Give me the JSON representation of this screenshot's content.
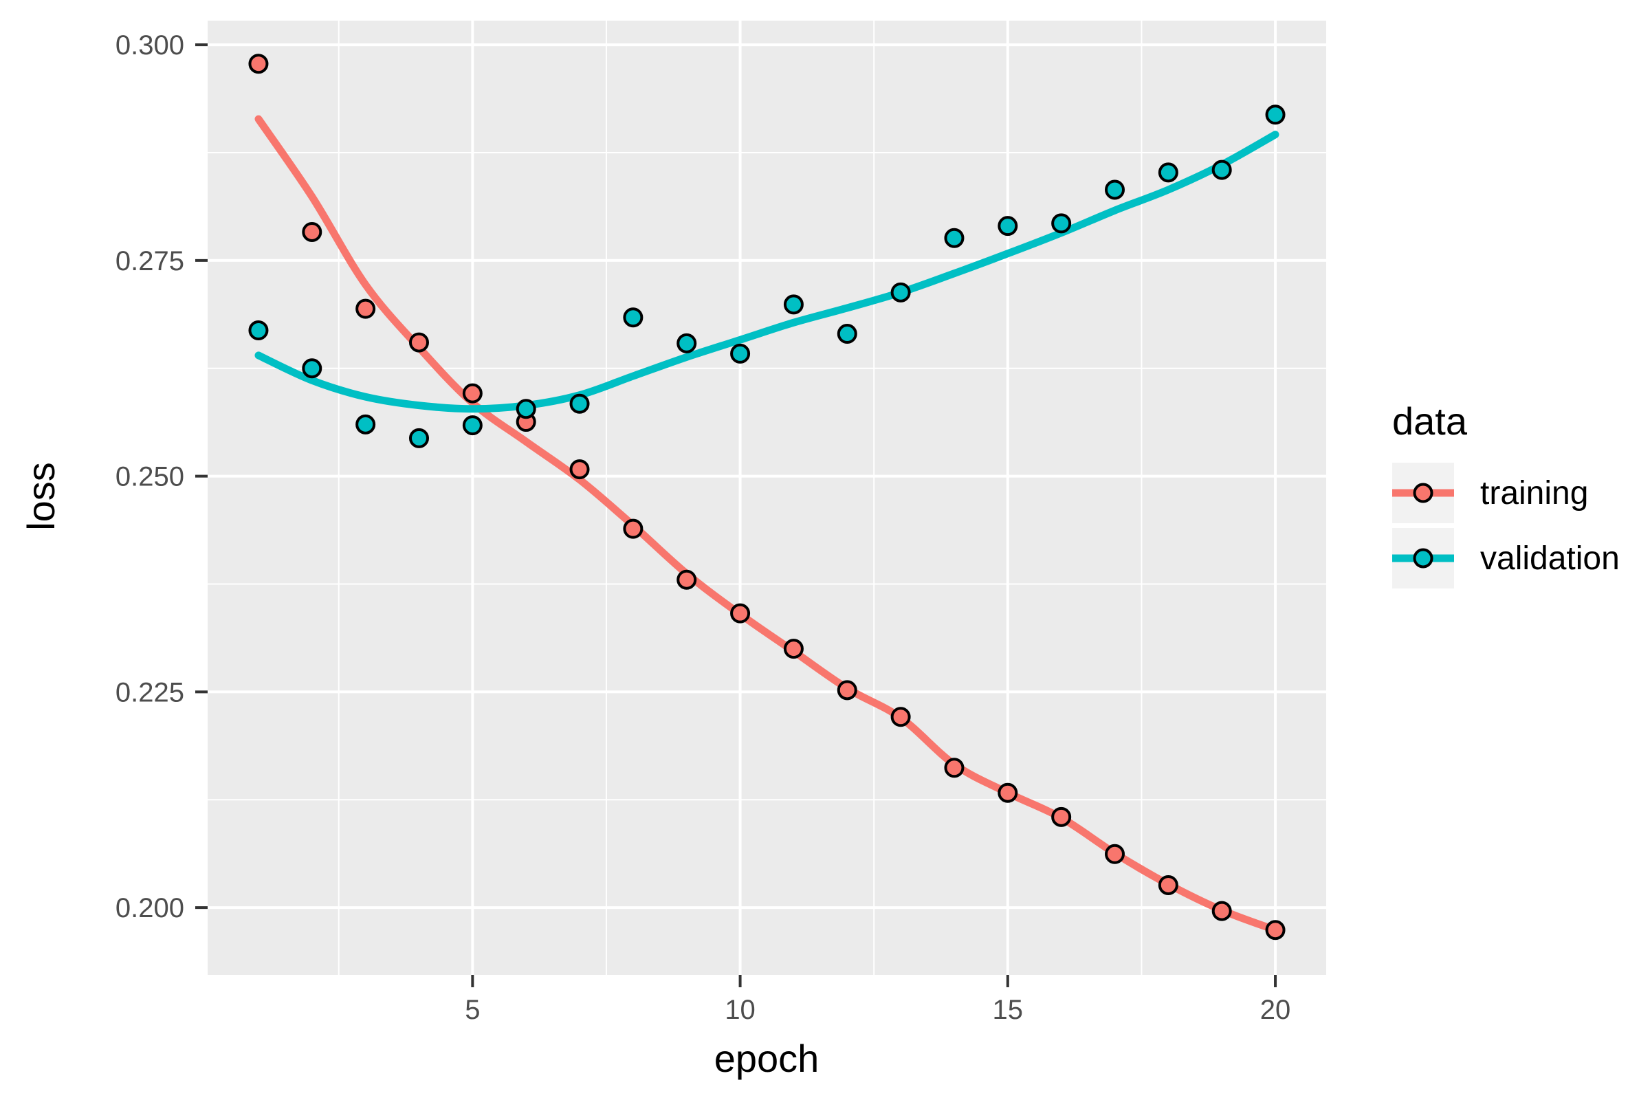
{
  "chart_data": {
    "type": "scatter",
    "title": "",
    "xlabel": "epoch",
    "ylabel": "loss",
    "legend_title": "data",
    "legend_position": "right",
    "grid": true,
    "panel_bg": "#EBEBEB",
    "grid_color": "#FFFFFF",
    "tick_mark_color": "#333333",
    "tick_label_color": "#4D4D4D",
    "xlim": [
      0.05,
      20.95
    ],
    "ylim": [
      0.1922,
      0.3028
    ],
    "x_major_ticks": [
      5,
      10,
      15,
      20
    ],
    "x_tick_labels": [
      "5",
      "10",
      "15",
      "20"
    ],
    "x_minor_ticks": [
      2.5,
      7.5,
      12.5,
      17.5
    ],
    "y_major_ticks": [
      0.2,
      0.225,
      0.25,
      0.275,
      0.3
    ],
    "y_tick_labels": [
      "0.200",
      "0.225",
      "0.250",
      "0.275",
      "0.300"
    ],
    "y_minor_ticks": [
      0.2125,
      0.2375,
      0.2625,
      0.2875
    ],
    "x": [
      1,
      2,
      3,
      4,
      5,
      6,
      7,
      8,
      9,
      10,
      11,
      12,
      13,
      14,
      15,
      16,
      17,
      18,
      19,
      20
    ],
    "series": [
      {
        "name": "training",
        "color": "#F8766D",
        "values": [
          0.2978,
          0.2783,
          0.2694,
          0.2655,
          0.2596,
          0.2563,
          0.2508,
          0.2439,
          0.238,
          0.2341,
          0.23,
          0.2252,
          0.2221,
          0.2162,
          0.2133,
          0.2105,
          0.2062,
          0.2026,
          0.1996,
          0.1974
        ],
        "smooth": [
          0.2914,
          0.2824,
          0.2722,
          0.2649,
          0.2585,
          0.254,
          0.2496,
          0.2443,
          0.2387,
          0.234,
          0.2297,
          0.2254,
          0.222,
          0.2166,
          0.2133,
          0.2104,
          0.2063,
          0.2027,
          0.1997,
          0.1974
        ]
      },
      {
        "name": "validation",
        "color": "#00BFC4",
        "values": [
          0.2669,
          0.2625,
          0.256,
          0.2544,
          0.2559,
          0.2578,
          0.2584,
          0.2684,
          0.2654,
          0.2642,
          0.2699,
          0.2665,
          0.2713,
          0.2776,
          0.279,
          0.2793,
          0.2832,
          0.2852,
          0.2855,
          0.2919
        ],
        "smooth": [
          0.264,
          0.2611,
          0.2592,
          0.2582,
          0.2578,
          0.2582,
          0.2594,
          0.2616,
          0.2638,
          0.2658,
          0.2678,
          0.2695,
          0.2713,
          0.2735,
          0.2758,
          0.2782,
          0.2808,
          0.2832,
          0.2861,
          0.2896
        ]
      }
    ]
  }
}
